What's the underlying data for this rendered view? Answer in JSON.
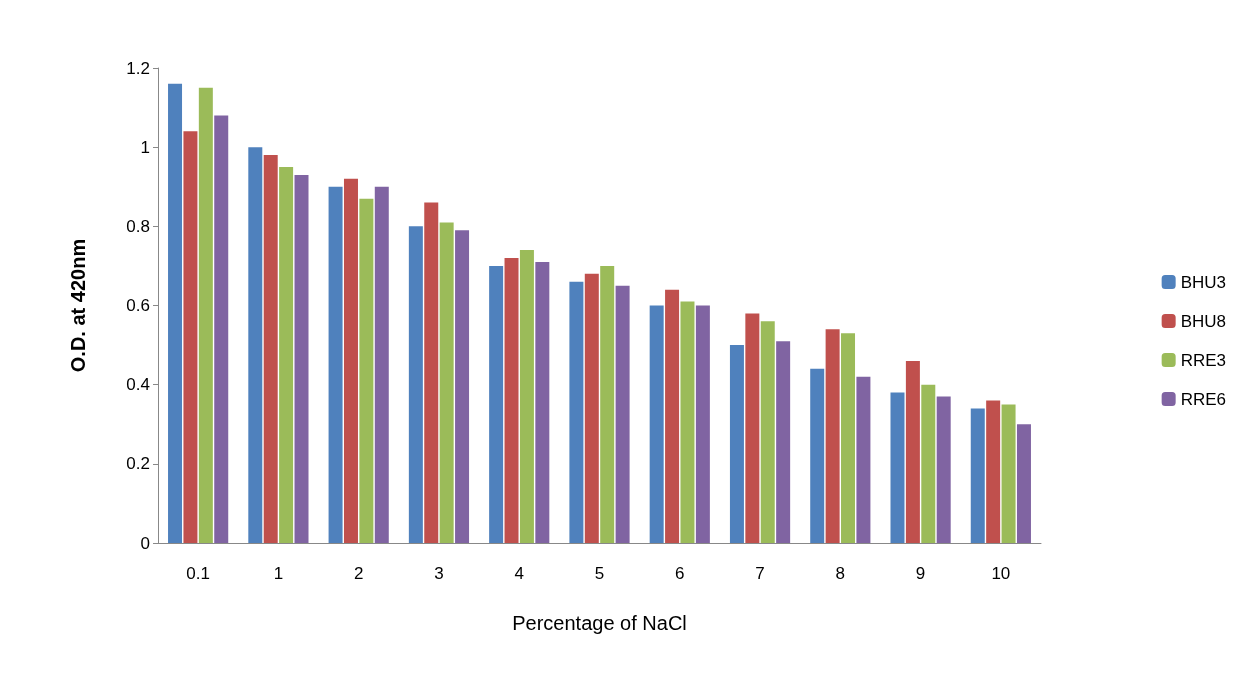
{
  "chart_data": {
    "type": "bar",
    "xlabel": "Percentage of NaCl",
    "ylabel": "O.D. at 420nm",
    "categories": [
      "0.1",
      "1",
      "2",
      "3",
      "4",
      "5",
      "6",
      "7",
      "8",
      "9",
      "10"
    ],
    "series": [
      {
        "name": "BHU3",
        "color": "#4f81bd",
        "values": [
          1.16,
          1.0,
          0.9,
          0.8,
          0.7,
          0.66,
          0.6,
          0.5,
          0.44,
          0.38,
          0.34
        ]
      },
      {
        "name": "BHU8",
        "color": "#c0504d",
        "values": [
          1.04,
          0.98,
          0.92,
          0.86,
          0.72,
          0.68,
          0.64,
          0.58,
          0.54,
          0.46,
          0.36
        ]
      },
      {
        "name": "RRE3",
        "color": "#9bbb59",
        "values": [
          1.15,
          0.95,
          0.87,
          0.81,
          0.74,
          0.7,
          0.61,
          0.56,
          0.53,
          0.4,
          0.35
        ]
      },
      {
        "name": "RRE6",
        "color": "#8064a2",
        "values": [
          1.08,
          0.93,
          0.9,
          0.79,
          0.71,
          0.65,
          0.6,
          0.51,
          0.42,
          0.37,
          0.3
        ]
      }
    ],
    "ylim": [
      0,
      1.2
    ],
    "yticks": [
      0,
      0.2,
      0.4,
      0.6,
      0.8,
      1,
      1.2
    ],
    "grid": false,
    "legend": "right"
  }
}
